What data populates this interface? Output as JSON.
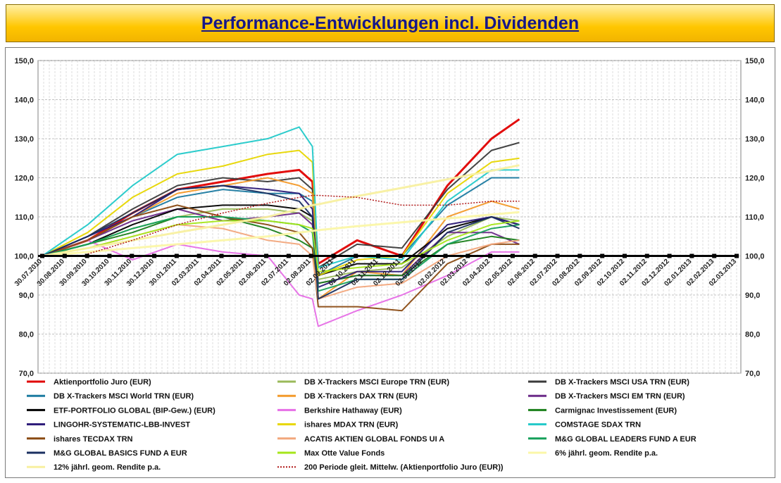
{
  "title": "Performance-Entwicklungen incl. Dividenden",
  "chart_data": {
    "type": "line",
    "title": "Performance-Entwicklungen incl. Dividenden",
    "ylim": [
      70,
      150
    ],
    "y_ticks": [
      "70,0",
      "80,0",
      "90,0",
      "100,0",
      "110,0",
      "120,0",
      "130,0",
      "140,0",
      "150,0"
    ],
    "x_tick_labels": [
      "30.07.2010",
      "30.08.2010",
      "30.09.2010",
      "30.10.2010",
      "30.11.2010",
      "30.12.2010",
      "30.01.2011",
      "02.03.2011",
      "02.04.2011",
      "02.05.2011",
      "02.06.2011",
      "02.07.2011",
      "02.08.2011",
      "02.09.2011",
      "02.10.2011",
      "02.11.2011",
      "02.12.2011",
      "02.01.2012",
      "02.02.2012",
      "02.03.2012",
      "02.04.2012",
      "02.05.2012",
      "02.06.2012",
      "02.07.2012",
      "02.08.2012",
      "02.09.2012",
      "02.10.2012",
      "02.11.2012",
      "02.12.2012",
      "02.01.2013",
      "02.02.2013",
      "02.03.2013"
    ],
    "x": [
      "30.07.2010",
      "30.09.2010",
      "30.11.2010",
      "30.01.2011",
      "02.04.2011",
      "02.06.2011",
      "15.07.2011",
      "02.08.2011",
      "10.08.2011",
      "02.10.2011",
      "02.12.2011",
      "02.02.2012",
      "02.04.2012",
      "10.05.2012"
    ],
    "grid": true,
    "baseline": 100,
    "series": [
      {
        "name": "Aktienportfolio Juro (EUR)",
        "color": "#e00000",
        "width": 3,
        "values": [
          100,
          104,
          111,
          117,
          119,
          121,
          122,
          119,
          98,
          104,
          100,
          118,
          130,
          135
        ]
      },
      {
        "name": "DB X-Trackers MSCI Europe TRN (EUR)",
        "color": "#9aba5a",
        "width": 2,
        "values": [
          100,
          103,
          107,
          110,
          112,
          112,
          111,
          109,
          94,
          96,
          97,
          105,
          110,
          109
        ]
      },
      {
        "name": "DB X-Trackers MSCI USA TRN (EUR)",
        "color": "#3a3a3a",
        "width": 2,
        "values": [
          100,
          105,
          112,
          118,
          120,
          119,
          120,
          117,
          97,
          103,
          102,
          117,
          127,
          129
        ]
      },
      {
        "name": "DB X-Trackers MSCI World TRN (EUR)",
        "color": "#1b7aa0",
        "width": 2,
        "values": [
          100,
          104,
          110,
          115,
          117,
          116,
          116,
          114,
          95,
          100,
          100,
          113,
          120,
          120
        ]
      },
      {
        "name": "DB X-Trackers DAX TRN (EUR)",
        "color": "#f39a2a",
        "width": 2,
        "values": [
          100,
          104,
          110,
          116,
          118,
          120,
          118,
          116,
          89,
          96,
          95,
          110,
          114,
          112
        ]
      },
      {
        "name": "DB X-Trackers  MSCI EM TRN (EUR)",
        "color": "#6b2a88",
        "width": 2,
        "values": [
          100,
          104,
          109,
          112,
          109,
          110,
          111,
          108,
          93,
          95,
          95,
          106,
          106,
          103
        ]
      },
      {
        "name": "ETF-PORTFOLIO GLOBAL (BIP-Gew.) (EUR)",
        "color": "#000000",
        "width": 2,
        "values": [
          100,
          103,
          108,
          112,
          113,
          113,
          112,
          110,
          95,
          98,
          98,
          107,
          110,
          108
        ]
      },
      {
        "name": "Berkshire Hathaway (EUR)",
        "color": "#e66ee6",
        "width": 2,
        "values": [
          100,
          104,
          99,
          103,
          101,
          100,
          90,
          89,
          82,
          86,
          90,
          95,
          101,
          101
        ]
      },
      {
        "name": "Carmignac Investissement (EUR)",
        "color": "#1a7f1a",
        "width": 2,
        "values": [
          100,
          103,
          106,
          110,
          110,
          107,
          104,
          102,
          93,
          95,
          95,
          103,
          105,
          104
        ]
      },
      {
        "name": "LINGOHR-SYSTEMATIC-LBB-INVEST",
        "color": "#2c1a78",
        "width": 2,
        "values": [
          100,
          105,
          110,
          117,
          118,
          117,
          116,
          112,
          92,
          96,
          96,
          108,
          110,
          108
        ]
      },
      {
        "name": "ishares MDAX TRN (EUR)",
        "color": "#e7d600",
        "width": 2,
        "values": [
          100,
          106,
          115,
          121,
          123,
          126,
          127,
          124,
          95,
          99,
          100,
          116,
          124,
          125
        ]
      },
      {
        "name": "COMSTAGE SDAX TRN",
        "color": "#22c9c9",
        "width": 2,
        "values": [
          100,
          108,
          118,
          126,
          128,
          130,
          133,
          128,
          97,
          100,
          99,
          114,
          122,
          122
        ]
      },
      {
        "name": "ishares TECDAX TRN",
        "color": "#8a4a12",
        "width": 2,
        "values": [
          100,
          104,
          110,
          113,
          110,
          108,
          106,
          102,
          87,
          87,
          86,
          98,
          103,
          103
        ]
      },
      {
        "name": "ACATIS AKTIEN GLOBAL FONDS UI A",
        "color": "#f2a77c",
        "width": 2,
        "values": [
          100,
          102,
          105,
          108,
          107,
          104,
          103,
          100,
          89,
          92,
          93,
          100,
          103,
          104
        ]
      },
      {
        "name": "M&G GLOBAL LEADERS FUND A EUR",
        "color": "#16a05a",
        "width": 2,
        "values": [
          100,
          103,
          107,
          110,
          110,
          109,
          108,
          106,
          91,
          94,
          94,
          103,
          107,
          108
        ]
      },
      {
        "name": "M&G GLOBAL BASICS FUND A EUR",
        "color": "#1a2f60",
        "width": 2,
        "values": [
          100,
          105,
          111,
          117,
          118,
          116,
          114,
          110,
          89,
          94,
          94,
          106,
          110,
          107
        ]
      },
      {
        "name": "Max Otte Value Fonds",
        "color": "#a6e61a",
        "width": 2,
        "values": [
          100,
          102,
          105,
          108,
          109,
          109,
          108,
          107,
          96,
          97,
          98,
          104,
          108,
          109
        ]
      },
      {
        "name": "6% jährl. geom. Rendite p.a.",
        "color": "#fbf7a8",
        "width": 3,
        "values": [
          100,
          101,
          102,
          103,
          104,
          105,
          106,
          106.4,
          106.6,
          107.6,
          108.6,
          109.6,
          110.6,
          111.2
        ]
      },
      {
        "name": "12% jährl. geom. Rendite p.a.",
        "color": "#f8f0a0",
        "width": 3,
        "values": [
          100,
          102,
          104,
          106,
          108,
          110,
          112,
          113,
          113.2,
          115.3,
          117.4,
          119.6,
          121.8,
          123.2
        ]
      },
      {
        "name": "200 Periode gleit. Mittelw. (Aktienportfolio Juro (EUR))",
        "color": "#b01818",
        "width": 1.5,
        "dashed": true,
        "values": [
          null,
          100.5,
          104,
          108,
          111,
          113.5,
          115,
          115.5,
          115.5,
          115,
          113,
          113,
          114,
          114
        ]
      }
    ],
    "legend_position": "bottom"
  }
}
